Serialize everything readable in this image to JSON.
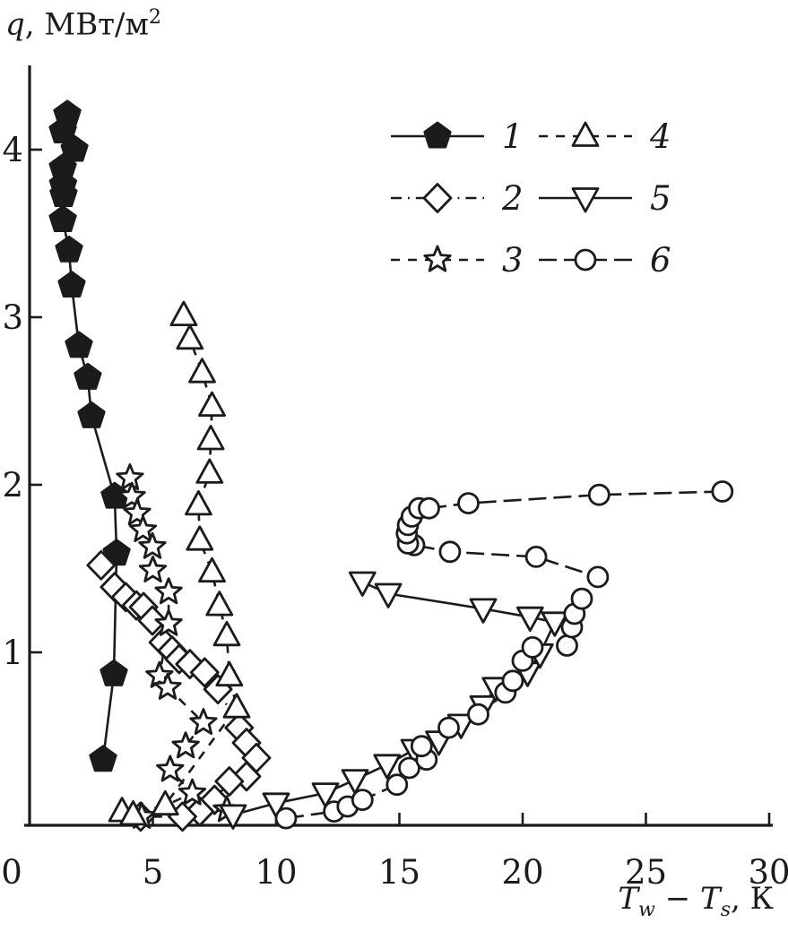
{
  "title_y": {
    "var": "q",
    "rest": ", МВт/м",
    "sup": "2"
  },
  "title_x": {
    "t1": "T",
    "sub1": "w",
    "dash": " − ",
    "t2": "T",
    "sub2": "s",
    "tail": ", К"
  },
  "colors": {
    "ink": "#1b1b1b",
    "background": "#ffffff"
  },
  "chart_data": {
    "type": "scatter",
    "title": "",
    "xlabel": "Tw − Ts, К",
    "ylabel": "q, МВт/м²",
    "xlim": [
      0,
      30
    ],
    "ylim": [
      0,
      4.54
    ],
    "x_ticks": [
      0,
      5,
      10,
      15,
      20,
      25,
      30
    ],
    "y_ticks": [
      1,
      2,
      3,
      4
    ],
    "grid": false,
    "legend_position": "upper-right-inside",
    "series": [
      {
        "name": "1",
        "marker": "pentagon",
        "filled": true,
        "line": "solid",
        "points": [
          [
            1.53,
            4.21
          ],
          [
            1.35,
            4.11
          ],
          [
            1.82,
            4.0
          ],
          [
            1.35,
            3.89
          ],
          [
            1.36,
            3.79
          ],
          [
            1.38,
            3.73
          ],
          [
            1.35,
            3.58
          ],
          [
            1.6,
            3.4
          ],
          [
            1.71,
            3.19
          ],
          [
            2.0,
            2.83
          ],
          [
            2.36,
            2.64
          ],
          [
            2.51,
            2.41
          ],
          [
            3.45,
            1.93
          ],
          [
            3.53,
            1.59
          ],
          [
            3.42,
            0.87
          ],
          [
            2.98,
            0.36
          ]
        ]
      },
      {
        "name": "2",
        "marker": "diamond",
        "filled": false,
        "line": "dashdot",
        "points": [
          [
            2.9,
            1.52
          ],
          [
            3.45,
            1.39
          ],
          [
            3.9,
            1.33
          ],
          [
            4.33,
            1.28
          ],
          [
            4.62,
            1.27
          ],
          [
            4.98,
            1.19
          ],
          [
            5.42,
            1.06
          ],
          [
            5.78,
            1.01
          ],
          [
            6.07,
            0.96
          ],
          [
            6.5,
            0.93
          ],
          [
            7.1,
            0.88
          ],
          [
            7.64,
            0.78
          ],
          [
            8.5,
            0.55
          ],
          [
            8.8,
            0.46
          ],
          [
            9.2,
            0.37
          ],
          [
            8.8,
            0.26
          ],
          [
            8.1,
            0.23
          ],
          [
            7.5,
            0.12
          ],
          [
            6.9,
            0.05
          ],
          [
            6.2,
            0.02
          ],
          [
            4.5,
            0.02
          ]
        ]
      },
      {
        "name": "3",
        "marker": "star",
        "filled": false,
        "line": "dashed",
        "points": [
          [
            4.07,
            2.04
          ],
          [
            4.15,
            1.93
          ],
          [
            4.36,
            1.83
          ],
          [
            4.6,
            1.73
          ],
          [
            4.98,
            1.63
          ],
          [
            5.0,
            1.49
          ],
          [
            5.64,
            1.36
          ],
          [
            5.64,
            1.17
          ],
          [
            5.27,
            0.86
          ],
          [
            5.6,
            0.79
          ],
          [
            7.05,
            0.58
          ],
          [
            6.33,
            0.44
          ],
          [
            5.7,
            0.3
          ],
          [
            6.6,
            0.16
          ],
          [
            4.55,
            0.02
          ],
          [
            8.0,
            0.06
          ]
        ]
      },
      {
        "name": "4",
        "marker": "triangle-up",
        "filled": false,
        "line": "dashed",
        "points": [
          [
            3.75,
            0.05
          ],
          [
            4.2,
            0.03
          ],
          [
            5.5,
            0.09
          ],
          [
            8.4,
            0.67
          ],
          [
            8.1,
            0.86
          ],
          [
            8.0,
            1.1
          ],
          [
            7.7,
            1.28
          ],
          [
            7.4,
            1.48
          ],
          [
            6.9,
            1.67
          ],
          [
            6.85,
            1.88
          ],
          [
            7.3,
            2.07
          ],
          [
            7.35,
            2.27
          ],
          [
            7.4,
            2.47
          ],
          [
            7.0,
            2.67
          ],
          [
            6.5,
            2.87
          ],
          [
            6.25,
            3.01
          ]
        ]
      },
      {
        "name": "5",
        "marker": "triangle-down",
        "filled": false,
        "line": "solid",
        "points": [
          [
            8.25,
            0.03
          ],
          [
            10.0,
            0.1
          ],
          [
            12.0,
            0.16
          ],
          [
            13.2,
            0.24
          ],
          [
            14.5,
            0.33
          ],
          [
            15.6,
            0.42
          ],
          [
            16.6,
            0.47
          ],
          [
            17.5,
            0.57
          ],
          [
            18.4,
            0.68
          ],
          [
            18.9,
            0.79
          ],
          [
            20.2,
            0.88
          ],
          [
            20.7,
            0.99
          ],
          [
            21.3,
            1.18
          ],
          [
            20.3,
            1.21
          ],
          [
            18.4,
            1.26
          ],
          [
            14.55,
            1.35
          ],
          [
            13.5,
            1.42
          ]
        ]
      },
      {
        "name": "6",
        "marker": "circle",
        "filled": false,
        "line": "longdash",
        "points": [
          [
            10.4,
            0.01
          ],
          [
            12.35,
            0.05
          ],
          [
            12.9,
            0.08
          ],
          [
            13.5,
            0.12
          ],
          [
            14.9,
            0.21
          ],
          [
            15.4,
            0.31
          ],
          [
            16.1,
            0.36
          ],
          [
            15.9,
            0.44
          ],
          [
            17.0,
            0.55
          ],
          [
            18.2,
            0.63
          ],
          [
            19.3,
            0.76
          ],
          [
            19.6,
            0.83
          ],
          [
            20.0,
            0.95
          ],
          [
            20.4,
            1.03
          ],
          [
            21.8,
            1.04
          ],
          [
            22.0,
            1.15
          ],
          [
            22.1,
            1.23
          ],
          [
            22.4,
            1.32
          ],
          [
            23.05,
            1.45
          ],
          [
            20.55,
            1.57
          ],
          [
            17.05,
            1.6
          ],
          [
            15.6,
            1.64
          ],
          [
            15.35,
            1.65
          ],
          [
            15.3,
            1.71
          ],
          [
            15.35,
            1.76
          ],
          [
            15.5,
            1.81
          ],
          [
            15.8,
            1.86
          ],
          [
            16.2,
            1.86
          ],
          [
            17.8,
            1.89
          ],
          [
            23.1,
            1.94
          ],
          [
            28.1,
            1.96
          ]
        ]
      }
    ]
  }
}
